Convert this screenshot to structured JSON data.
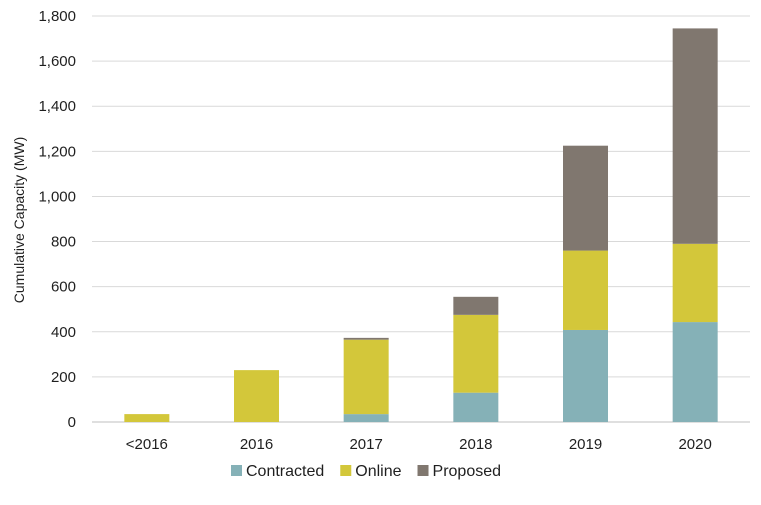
{
  "chart_data": {
    "type": "bar",
    "stacked": true,
    "title": "",
    "xlabel": "",
    "ylabel": "Cumulative Capacity (MW)",
    "ylim": [
      0,
      1800
    ],
    "ytick_step": 200,
    "ytick_labels": [
      "0",
      "200",
      "400",
      "600",
      "800",
      "1,000",
      "1,200",
      "1,400",
      "1,600",
      "1,800"
    ],
    "categories": [
      "<2016",
      "2016",
      "2017",
      "2018",
      "2019",
      "2020"
    ],
    "grid": true,
    "legend_position": "bottom",
    "series": [
      {
        "name": "Contracted",
        "color": "#85b1b7",
        "values": [
          0,
          0,
          35,
          130,
          408,
          443
        ]
      },
      {
        "name": "Online",
        "color": "#d3c73a",
        "values": [
          35,
          230,
          330,
          345,
          352,
          347
        ]
      },
      {
        "name": "Proposed",
        "color": "#80776f",
        "values": [
          0,
          0,
          8,
          80,
          465,
          955
        ]
      }
    ]
  }
}
